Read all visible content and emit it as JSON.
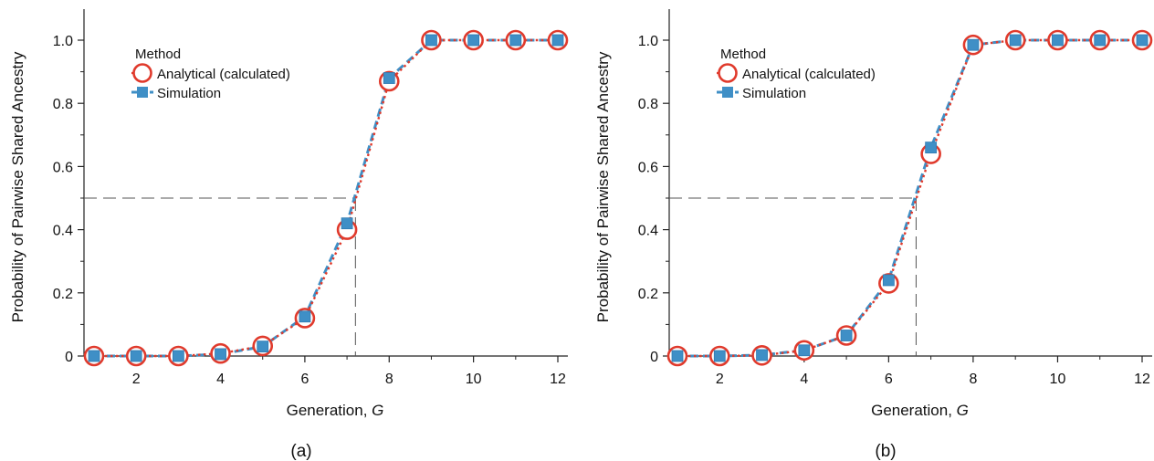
{
  "chart_data": [
    {
      "type": "line",
      "panel_label": "(a)",
      "xlabel": "Generation, ",
      "xlabel_var": "G",
      "ylabel": "Probability of Pairwise Shared Ancestry",
      "xlim": [
        0.5,
        12.3
      ],
      "ylim": [
        0,
        1.1
      ],
      "xticks": [
        2,
        4,
        6,
        8,
        10,
        12
      ],
      "xminor": [
        1,
        3,
        5,
        7,
        9,
        11
      ],
      "yticks": [
        0,
        0.2,
        0.4,
        0.6,
        0.8,
        1.0
      ],
      "ytick_labels": [
        "0",
        "0.2",
        "0.4",
        "0.6",
        "0.8",
        "1.0"
      ],
      "yminor": [
        0.1,
        0.3,
        0.5,
        0.7,
        0.9
      ],
      "legend_title": "Method",
      "legend_position": "upper-left",
      "series": [
        {
          "name": "Analytical (calculated)",
          "marker": "open-circle",
          "line": "dotted",
          "color": "#e03a2c",
          "x": [
            1,
            2,
            3,
            4,
            5,
            6,
            7,
            8,
            9,
            10,
            11,
            12
          ],
          "y": [
            0,
            0,
            0,
            0.008,
            0.032,
            0.12,
            0.4,
            0.87,
            1.0,
            1.0,
            1.0,
            1.0
          ]
        },
        {
          "name": "Simulation",
          "marker": "square",
          "line": "dashed",
          "color": "#3f8fc6",
          "x": [
            1,
            2,
            3,
            4,
            5,
            6,
            7,
            8,
            9,
            10,
            11,
            12
          ],
          "y": [
            0,
            0,
            0,
            0.006,
            0.03,
            0.125,
            0.42,
            0.88,
            1.0,
            1.0,
            1.0,
            1.0
          ]
        }
      ],
      "reference_lines": {
        "y": 0.5,
        "x": 7.2
      }
    },
    {
      "type": "line",
      "panel_label": "(b)",
      "xlabel": "Generation, ",
      "xlabel_var": "G",
      "ylabel": "Probability of Pairwise Shared Ancestry",
      "xlim": [
        0.5,
        12.3
      ],
      "ylim": [
        0,
        1.1
      ],
      "xticks": [
        2,
        4,
        6,
        8,
        10,
        12
      ],
      "xminor": [
        1,
        3,
        5,
        7,
        9,
        11
      ],
      "yticks": [
        0,
        0.2,
        0.4,
        0.6,
        0.8,
        1.0
      ],
      "ytick_labels": [
        "0",
        "0.2",
        "0.4",
        "0.6",
        "0.8",
        "1.0"
      ],
      "yminor": [
        0.1,
        0.3,
        0.5,
        0.7,
        0.9
      ],
      "legend_title": "Method",
      "legend_position": "upper-left",
      "series": [
        {
          "name": "Analytical (calculated)",
          "marker": "open-circle",
          "line": "dotted",
          "color": "#e03a2c",
          "x": [
            1,
            2,
            3,
            4,
            5,
            6,
            7,
            8,
            9,
            10,
            11,
            12
          ],
          "y": [
            0,
            0,
            0.002,
            0.018,
            0.065,
            0.23,
            0.64,
            0.985,
            1.0,
            1.0,
            1.0,
            1.0
          ]
        },
        {
          "name": "Simulation",
          "marker": "square",
          "line": "dashed",
          "color": "#3f8fc6",
          "x": [
            1,
            2,
            3,
            4,
            5,
            6,
            7,
            8,
            9,
            10,
            11,
            12
          ],
          "y": [
            0,
            0,
            0.003,
            0.018,
            0.065,
            0.24,
            0.66,
            0.985,
            1.0,
            1.0,
            1.0,
            1.0
          ]
        }
      ],
      "reference_lines": {
        "y": 0.5,
        "x": 6.65
      }
    }
  ]
}
